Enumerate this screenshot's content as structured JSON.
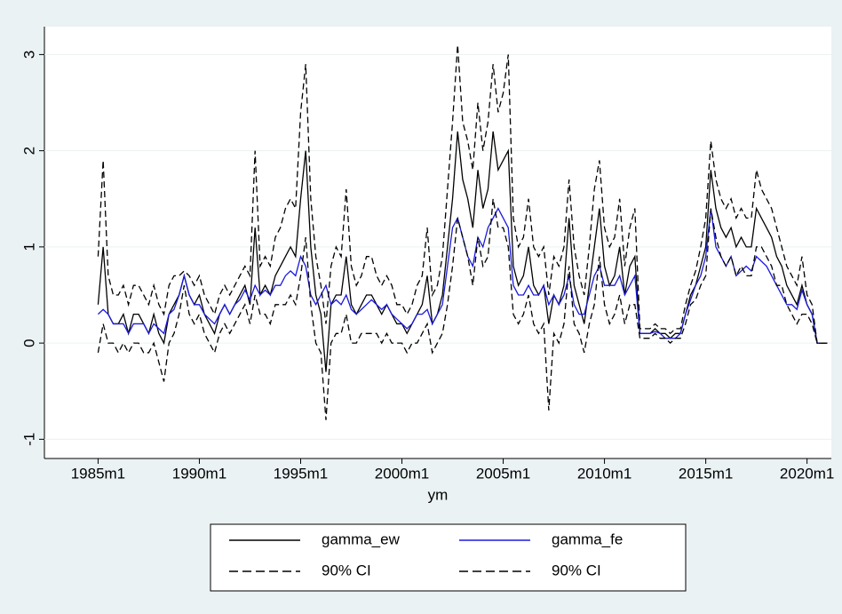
{
  "chart_data": {
    "type": "line",
    "x_label": "ym",
    "xlim": [
      1982.35,
      2021.2
    ],
    "ylim": [
      -1.2,
      3.29
    ],
    "xticks": [
      {
        "value": 1985,
        "label": "1985m1"
      },
      {
        "value": 1990,
        "label": "1990m1"
      },
      {
        "value": 1995,
        "label": "1995m1"
      },
      {
        "value": 2000,
        "label": "2000m1"
      },
      {
        "value": 2005,
        "label": "2005m1"
      },
      {
        "value": 2010,
        "label": "2010m1"
      },
      {
        "value": 2015,
        "label": "2015m1"
      },
      {
        "value": 2020,
        "label": "2020m1"
      }
    ],
    "yticks": [
      -1,
      0,
      1,
      2,
      3
    ],
    "grid": true,
    "x": [
      1985,
      1985.25,
      1985.5,
      1985.75,
      1986,
      1986.25,
      1986.5,
      1986.75,
      1987,
      1987.25,
      1987.5,
      1987.75,
      1988,
      1988.25,
      1988.5,
      1988.75,
      1989,
      1989.25,
      1989.5,
      1989.75,
      1990,
      1990.25,
      1990.5,
      1990.75,
      1991,
      1991.25,
      1991.5,
      1991.75,
      1992,
      1992.25,
      1992.5,
      1992.75,
      1993,
      1993.25,
      1993.5,
      1993.75,
      1994,
      1994.25,
      1994.5,
      1994.75,
      1995,
      1995.25,
      1995.5,
      1995.75,
      1996,
      1996.25,
      1996.5,
      1996.75,
      1997,
      1997.25,
      1997.5,
      1997.75,
      1998,
      1998.25,
      1998.5,
      1998.75,
      1999,
      1999.25,
      1999.5,
      1999.75,
      2000,
      2000.25,
      2000.5,
      2000.75,
      2001,
      2001.25,
      2001.5,
      2001.75,
      2002,
      2002.25,
      2002.5,
      2002.75,
      2003,
      2003.25,
      2003.5,
      2003.75,
      2004,
      2004.25,
      2004.5,
      2004.75,
      2005,
      2005.25,
      2005.5,
      2005.75,
      2006,
      2006.25,
      2006.5,
      2006.75,
      2007,
      2007.25,
      2007.5,
      2007.75,
      2008,
      2008.25,
      2008.5,
      2008.75,
      2009,
      2009.25,
      2009.5,
      2009.75,
      2010,
      2010.25,
      2010.5,
      2010.75,
      2011,
      2011.25,
      2011.5,
      2011.75,
      2012,
      2012.25,
      2012.5,
      2012.75,
      2013,
      2013.25,
      2013.5,
      2013.75,
      2014,
      2014.25,
      2014.5,
      2014.75,
      2015,
      2015.25,
      2015.5,
      2015.75,
      2016,
      2016.25,
      2016.5,
      2016.75,
      2017,
      2017.25,
      2017.5,
      2017.75,
      2018,
      2018.25,
      2018.5,
      2018.75,
      2019,
      2019.25,
      2019.5,
      2019.75,
      2020,
      2020.25,
      2020.5,
      2020.75,
      2021
    ],
    "series": [
      {
        "name": "gamma_ew",
        "color": "#000000",
        "dashed": false,
        "values": [
          0.4,
          1.0,
          0.3,
          0.2,
          0.2,
          0.3,
          0.1,
          0.3,
          0.3,
          0.2,
          0.1,
          0.3,
          0.1,
          0.0,
          0.3,
          0.4,
          0.5,
          0.7,
          0.5,
          0.4,
          0.5,
          0.3,
          0.2,
          0.1,
          0.3,
          0.4,
          0.3,
          0.4,
          0.5,
          0.6,
          0.4,
          1.2,
          0.5,
          0.6,
          0.5,
          0.7,
          0.8,
          0.9,
          1.0,
          0.9,
          1.5,
          2.0,
          1.0,
          0.5,
          0.3,
          -0.3,
          0.4,
          0.5,
          0.5,
          0.9,
          0.4,
          0.3,
          0.4,
          0.5,
          0.5,
          0.4,
          0.3,
          0.4,
          0.3,
          0.2,
          0.2,
          0.1,
          0.2,
          0.3,
          0.4,
          0.7,
          0.2,
          0.3,
          0.5,
          1.0,
          1.5,
          2.2,
          1.7,
          1.5,
          1.2,
          1.8,
          1.4,
          1.6,
          2.2,
          1.8,
          1.9,
          2.0,
          0.8,
          0.6,
          0.7,
          1.0,
          0.6,
          0.5,
          0.6,
          0.2,
          0.5,
          0.4,
          0.6,
          1.3,
          0.6,
          0.4,
          0.2,
          0.6,
          1.0,
          1.4,
          0.8,
          0.6,
          0.7,
          1.0,
          0.5,
          0.8,
          0.9,
          0.1,
          0.1,
          0.1,
          0.15,
          0.1,
          0.1,
          0.05,
          0.1,
          0.1,
          0.3,
          0.5,
          0.6,
          0.8,
          1.0,
          1.8,
          1.4,
          1.2,
          1.1,
          1.2,
          1.0,
          1.1,
          1.0,
          1.0,
          1.4,
          1.3,
          1.2,
          1.1,
          0.9,
          0.8,
          0.6,
          0.5,
          0.4,
          0.6,
          0.4,
          0.3,
          0.0,
          0.0,
          0.0
        ]
      },
      {
        "name": "gamma_fe",
        "color": "#1a1adb",
        "dashed": false,
        "values": [
          0.3,
          0.35,
          0.3,
          0.2,
          0.2,
          0.2,
          0.1,
          0.2,
          0.2,
          0.2,
          0.1,
          0.2,
          0.15,
          0.1,
          0.3,
          0.35,
          0.5,
          0.7,
          0.5,
          0.4,
          0.4,
          0.3,
          0.25,
          0.2,
          0.3,
          0.4,
          0.3,
          0.4,
          0.45,
          0.55,
          0.45,
          0.6,
          0.5,
          0.55,
          0.5,
          0.6,
          0.6,
          0.7,
          0.75,
          0.7,
          0.9,
          0.8,
          0.5,
          0.4,
          0.5,
          0.6,
          0.4,
          0.45,
          0.4,
          0.5,
          0.35,
          0.3,
          0.35,
          0.4,
          0.45,
          0.4,
          0.35,
          0.4,
          0.3,
          0.25,
          0.2,
          0.15,
          0.2,
          0.3,
          0.3,
          0.35,
          0.2,
          0.3,
          0.4,
          0.8,
          1.2,
          1.3,
          1.1,
          0.9,
          0.8,
          1.1,
          1.0,
          1.2,
          1.3,
          1.4,
          1.3,
          1.2,
          0.6,
          0.5,
          0.5,
          0.6,
          0.5,
          0.5,
          0.6,
          0.4,
          0.5,
          0.4,
          0.5,
          0.7,
          0.4,
          0.3,
          0.3,
          0.5,
          0.7,
          0.8,
          0.6,
          0.6,
          0.6,
          0.7,
          0.5,
          0.6,
          0.7,
          0.1,
          0.1,
          0.1,
          0.12,
          0.1,
          0.05,
          0.05,
          0.05,
          0.1,
          0.3,
          0.45,
          0.6,
          0.7,
          0.9,
          1.4,
          1.0,
          0.9,
          0.8,
          0.9,
          0.7,
          0.75,
          0.8,
          0.75,
          0.9,
          0.85,
          0.8,
          0.7,
          0.6,
          0.5,
          0.4,
          0.4,
          0.35,
          0.55,
          0.4,
          0.3,
          0.0,
          0.0,
          0.0
        ]
      },
      {
        "name": "90% CI",
        "color": "#000000",
        "dashed": true,
        "values": [
          0.9,
          1.9,
          0.7,
          0.5,
          0.5,
          0.6,
          0.4,
          0.6,
          0.6,
          0.5,
          0.4,
          0.6,
          0.4,
          0.3,
          0.6,
          0.7,
          0.7,
          0.75,
          0.7,
          0.6,
          0.7,
          0.5,
          0.4,
          0.3,
          0.5,
          0.6,
          0.5,
          0.6,
          0.7,
          0.8,
          0.7,
          2.0,
          0.8,
          0.9,
          0.8,
          1.1,
          1.2,
          1.4,
          1.5,
          1.4,
          2.4,
          2.9,
          1.5,
          0.9,
          0.6,
          0.2,
          0.8,
          1.0,
          0.9,
          1.6,
          0.8,
          0.6,
          0.7,
          0.9,
          0.9,
          0.7,
          0.6,
          0.7,
          0.6,
          0.4,
          0.4,
          0.3,
          0.4,
          0.6,
          0.7,
          1.2,
          0.5,
          0.6,
          0.9,
          1.6,
          2.3,
          3.1,
          2.3,
          2.1,
          1.8,
          2.5,
          2.0,
          2.3,
          2.9,
          2.4,
          2.6,
          3.0,
          1.3,
          1.0,
          1.1,
          1.5,
          1.0,
          0.9,
          1.0,
          0.5,
          0.9,
          0.8,
          1.0,
          1.7,
          1.0,
          0.7,
          0.5,
          1.0,
          1.6,
          1.9,
          1.2,
          1.0,
          1.1,
          1.5,
          0.8,
          1.2,
          1.4,
          0.15,
          0.15,
          0.15,
          0.2,
          0.15,
          0.15,
          0.1,
          0.15,
          0.15,
          0.4,
          0.6,
          0.75,
          1.0,
          1.3,
          2.1,
          1.7,
          1.5,
          1.4,
          1.5,
          1.3,
          1.4,
          1.3,
          1.3,
          1.8,
          1.6,
          1.5,
          1.4,
          1.2,
          1.0,
          0.8,
          0.7,
          0.6,
          0.9,
          0.5,
          0.4,
          0.0,
          0.0,
          0.0
        ]
      },
      {
        "name": "90% CI",
        "color": "#000000",
        "dashed": true,
        "values": [
          -0.1,
          0.2,
          0.0,
          0.0,
          -0.1,
          0.0,
          -0.1,
          0.0,
          0.0,
          -0.1,
          -0.1,
          0.0,
          -0.2,
          -0.4,
          0.0,
          0.1,
          0.3,
          0.6,
          0.3,
          0.2,
          0.3,
          0.1,
          0.0,
          -0.1,
          0.1,
          0.2,
          0.1,
          0.2,
          0.3,
          0.4,
          0.2,
          0.5,
          0.3,
          0.3,
          0.2,
          0.4,
          0.4,
          0.4,
          0.5,
          0.4,
          0.7,
          1.1,
          0.4,
          0.0,
          -0.1,
          -0.8,
          0.0,
          0.1,
          0.1,
          0.3,
          0.0,
          0.0,
          0.1,
          0.1,
          0.1,
          0.1,
          0.0,
          0.1,
          0.0,
          0.0,
          0.0,
          -0.1,
          0.0,
          0.0,
          0.1,
          0.2,
          -0.1,
          0.0,
          0.1,
          0.4,
          0.8,
          1.3,
          1.1,
          0.9,
          0.6,
          1.1,
          0.8,
          0.9,
          1.5,
          1.2,
          1.2,
          1.0,
          0.3,
          0.2,
          0.3,
          0.5,
          0.2,
          0.1,
          0.2,
          -0.7,
          0.1,
          0.0,
          0.2,
          0.8,
          0.2,
          0.1,
          -0.1,
          0.2,
          0.4,
          0.9,
          0.4,
          0.2,
          0.3,
          0.5,
          0.2,
          0.4,
          0.4,
          0.05,
          0.05,
          0.05,
          0.1,
          0.05,
          0.05,
          0.0,
          0.05,
          0.05,
          0.2,
          0.4,
          0.45,
          0.6,
          0.7,
          1.4,
          1.1,
          0.9,
          0.8,
          0.9,
          0.7,
          0.8,
          0.7,
          0.7,
          1.0,
          1.0,
          0.9,
          0.8,
          0.6,
          0.6,
          0.4,
          0.3,
          0.2,
          0.3,
          0.3,
          0.2,
          0.0,
          0.0,
          0.0
        ]
      }
    ]
  }
}
